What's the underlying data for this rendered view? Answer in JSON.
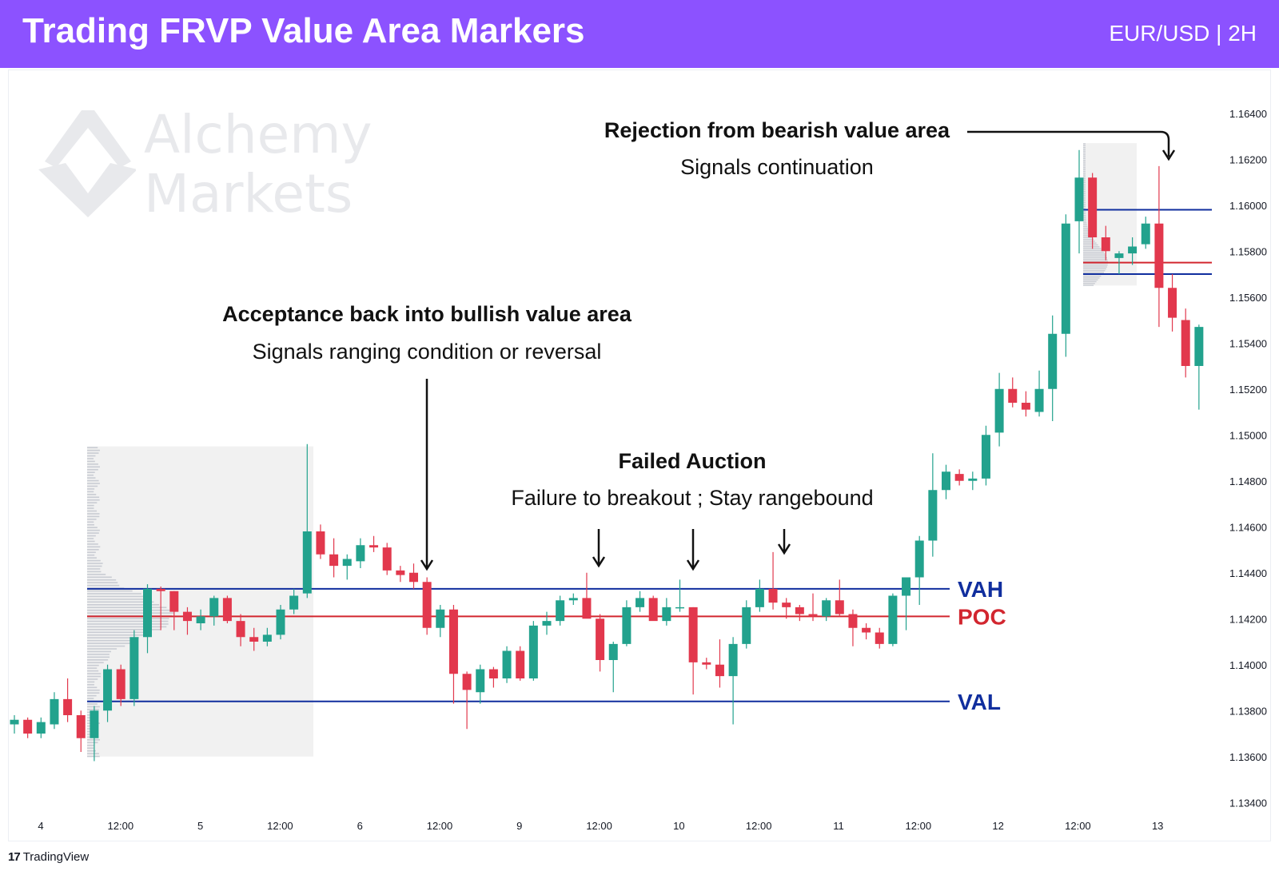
{
  "header": {
    "title": "Trading FRVP Value Area Markers",
    "symbol": "EUR/USD | 2H",
    "background": "#8c52ff"
  },
  "watermark": {
    "line1": "Alchemy",
    "line2": "Markets"
  },
  "footer": {
    "brand": "TradingView"
  },
  "colors": {
    "bull": "#22a28d",
    "bear": "#e2384d",
    "value_area_line": "#102e9e",
    "poc_line": "#d2262f",
    "profile_shade": "#f1f1f1",
    "annotation_text": "#111111"
  },
  "chart_data": {
    "type": "candlestick",
    "title": "",
    "xlabel": "",
    "ylabel": "",
    "ylim": [
      1.133,
      1.165
    ],
    "y_ticks": [
      "1.16400",
      "1.16200",
      "1.16000",
      "1.15800",
      "1.15600",
      "1.15400",
      "1.15200",
      "1.15000",
      "1.14800",
      "1.14600",
      "1.14400",
      "1.14200",
      "1.14000",
      "1.13800",
      "1.13600",
      "1.13400"
    ],
    "x_ticks": [
      "4",
      "12:00",
      "5",
      "12:00",
      "6",
      "12:00",
      "9",
      "12:00",
      "10",
      "12:00",
      "11",
      "12:00",
      "12",
      "12:00",
      "13"
    ],
    "candles": [
      [
        1.1374,
        1.1378,
        1.137,
        1.1376
      ],
      [
        1.1376,
        1.1377,
        1.1368,
        1.137
      ],
      [
        1.137,
        1.1377,
        1.1368,
        1.1375
      ],
      [
        1.1374,
        1.1388,
        1.1372,
        1.1385
      ],
      [
        1.1385,
        1.1394,
        1.1375,
        1.1378
      ],
      [
        1.1378,
        1.138,
        1.1362,
        1.1368
      ],
      [
        1.1368,
        1.1382,
        1.1358,
        1.138
      ],
      [
        1.138,
        1.14,
        1.1375,
        1.1398
      ],
      [
        1.1398,
        1.14,
        1.1382,
        1.1385
      ],
      [
        1.1385,
        1.1415,
        1.1382,
        1.1412
      ],
      [
        1.1412,
        1.1435,
        1.1405,
        1.1433
      ],
      [
        1.1433,
        1.1434,
        1.1415,
        1.1432
      ],
      [
        1.1432,
        1.1432,
        1.1415,
        1.1423
      ],
      [
        1.1423,
        1.1425,
        1.1413,
        1.1419
      ],
      [
        1.1418,
        1.1424,
        1.1415,
        1.1421
      ],
      [
        1.1421,
        1.143,
        1.1417,
        1.1429
      ],
      [
        1.1429,
        1.143,
        1.1418,
        1.1419
      ],
      [
        1.1419,
        1.1422,
        1.1408,
        1.1412
      ],
      [
        1.1412,
        1.1416,
        1.1406,
        1.141
      ],
      [
        1.141,
        1.1416,
        1.1408,
        1.1413
      ],
      [
        1.1413,
        1.1426,
        1.1411,
        1.1424
      ],
      [
        1.1424,
        1.1433,
        1.1422,
        1.143
      ],
      [
        1.1431,
        1.1496,
        1.1429,
        1.1458
      ],
      [
        1.1458,
        1.1461,
        1.1446,
        1.1448
      ],
      [
        1.1448,
        1.1455,
        1.1438,
        1.1443
      ],
      [
        1.1443,
        1.1448,
        1.1437,
        1.1446
      ],
      [
        1.1445,
        1.1455,
        1.1442,
        1.1452
      ],
      [
        1.1452,
        1.1456,
        1.1449,
        1.1451
      ],
      [
        1.1451,
        1.1453,
        1.1439,
        1.1441
      ],
      [
        1.1441,
        1.1443,
        1.1436,
        1.1439
      ],
      [
        1.144,
        1.1444,
        1.1433,
        1.1436
      ],
      [
        1.1436,
        1.1438,
        1.1413,
        1.1416
      ],
      [
        1.1416,
        1.1426,
        1.1412,
        1.1424
      ],
      [
        1.1424,
        1.1426,
        1.1383,
        1.1396
      ],
      [
        1.1396,
        1.1397,
        1.1372,
        1.1389
      ],
      [
        1.1388,
        1.14,
        1.1383,
        1.1398
      ],
      [
        1.1398,
        1.1399,
        1.139,
        1.1394
      ],
      [
        1.1394,
        1.1408,
        1.1392,
        1.1406
      ],
      [
        1.1406,
        1.1408,
        1.1393,
        1.1394
      ],
      [
        1.1394,
        1.1419,
        1.1393,
        1.1417
      ],
      [
        1.1417,
        1.1423,
        1.1413,
        1.1419
      ],
      [
        1.1419,
        1.143,
        1.1417,
        1.1428
      ],
      [
        1.1428,
        1.1431,
        1.1426,
        1.1429
      ],
      [
        1.1429,
        1.144,
        1.1421,
        1.142
      ],
      [
        1.142,
        1.1422,
        1.1397,
        1.1402
      ],
      [
        1.1402,
        1.141,
        1.1388,
        1.1409
      ],
      [
        1.1409,
        1.1428,
        1.1408,
        1.1425
      ],
      [
        1.1425,
        1.1432,
        1.1423,
        1.1429
      ],
      [
        1.1429,
        1.143,
        1.1422,
        1.1419
      ],
      [
        1.1419,
        1.1429,
        1.1417,
        1.1425
      ],
      [
        1.1425,
        1.1437,
        1.1423,
        1.1425
      ],
      [
        1.1425,
        1.1425,
        1.1387,
        1.1401
      ],
      [
        1.1401,
        1.1403,
        1.1398,
        1.14
      ],
      [
        1.14,
        1.1411,
        1.139,
        1.1395
      ],
      [
        1.1395,
        1.1412,
        1.1374,
        1.1409
      ],
      [
        1.1409,
        1.1428,
        1.1407,
        1.1425
      ],
      [
        1.1425,
        1.1437,
        1.1423,
        1.1433
      ],
      [
        1.1433,
        1.1449,
        1.1424,
        1.1427
      ],
      [
        1.1427,
        1.1429,
        1.142,
        1.1425
      ],
      [
        1.1425,
        1.1426,
        1.1419,
        1.1422
      ],
      [
        1.1422,
        1.1431,
        1.1419,
        1.1421
      ],
      [
        1.1421,
        1.1429,
        1.1419,
        1.1428
      ],
      [
        1.1428,
        1.1437,
        1.1421,
        1.1422
      ],
      [
        1.1422,
        1.1424,
        1.1408,
        1.1416
      ],
      [
        1.1416,
        1.1418,
        1.1411,
        1.1414
      ],
      [
        1.1414,
        1.1416,
        1.1407,
        1.1409
      ],
      [
        1.1409,
        1.1431,
        1.1408,
        1.143
      ],
      [
        1.143,
        1.1438,
        1.1415,
        1.1438
      ],
      [
        1.1438,
        1.1456,
        1.1426,
        1.1454
      ],
      [
        1.1454,
        1.1492,
        1.1447,
        1.1476
      ],
      [
        1.1476,
        1.1487,
        1.1472,
        1.1484
      ],
      [
        1.1483,
        1.1485,
        1.1478,
        1.148
      ],
      [
        1.148,
        1.1484,
        1.1476,
        1.1481
      ],
      [
        1.1481,
        1.1504,
        1.1478,
        1.15
      ],
      [
        1.1501,
        1.1527,
        1.1495,
        1.152
      ],
      [
        1.152,
        1.1525,
        1.1512,
        1.1514
      ],
      [
        1.1514,
        1.1519,
        1.1508,
        1.1511
      ],
      [
        1.151,
        1.1528,
        1.1508,
        1.152
      ],
      [
        1.152,
        1.1552,
        1.1506,
        1.1544
      ],
      [
        1.1544,
        1.1596,
        1.1534,
        1.1592
      ],
      [
        1.1593,
        1.1624,
        1.1579,
        1.1612
      ],
      [
        1.1612,
        1.1614,
        1.1581,
        1.1586
      ],
      [
        1.1586,
        1.1591,
        1.1576,
        1.158
      ],
      [
        1.1577,
        1.158,
        1.157,
        1.1579
      ],
      [
        1.1579,
        1.1586,
        1.1574,
        1.1582
      ],
      [
        1.1583,
        1.1595,
        1.1581,
        1.1592
      ],
      [
        1.1592,
        1.1617,
        1.1547,
        1.1564
      ],
      [
        1.1564,
        1.157,
        1.1545,
        1.1551
      ],
      [
        1.155,
        1.1555,
        1.1525,
        1.153
      ],
      [
        1.153,
        1.1548,
        1.1511,
        1.1547
      ]
    ],
    "candle_fields": [
      "open",
      "high",
      "low",
      "close"
    ],
    "profiles": [
      {
        "name": "",
        "price_range": [
          1.136,
          1.1495
        ],
        "vah": 1.1433,
        "poc": 1.1421,
        "val": 1.1384
      },
      {
        "name": "",
        "price_range": [
          1.1565,
          1.1627
        ],
        "vah": 1.1598,
        "poc": 1.1575,
        "val": 1.157
      }
    ],
    "levels": [
      {
        "label": "VAH",
        "price": 1.1433
      },
      {
        "label": "POC",
        "price": 1.1421
      },
      {
        "label": "VAL",
        "price": 1.1384
      }
    ],
    "annotations": [
      {
        "title": "Acceptance back into bullish value area",
        "subtitle": "Signals ranging condition or reversal"
      },
      {
        "title": "Failed Auction",
        "subtitle": "Failure to breakout ; Stay rangebound"
      },
      {
        "title": "Rejection from bearish value area",
        "subtitle": "Signals continuation"
      }
    ]
  }
}
